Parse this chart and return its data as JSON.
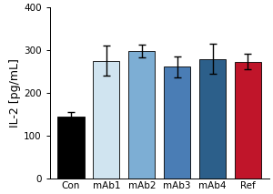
{
  "categories": [
    "Con",
    "mAb1",
    "mAb2",
    "mAb3",
    "mAb4",
    "Ref"
  ],
  "values": [
    145,
    275,
    299,
    261,
    280,
    273
  ],
  "errors": [
    10,
    35,
    15,
    25,
    35,
    18
  ],
  "bar_colors": [
    "#000000",
    "#d0e4f0",
    "#7daed4",
    "#4a7db5",
    "#2c5f8a",
    "#c0152a"
  ],
  "bar_edge_colors": [
    "#000000",
    "#000000",
    "#000000",
    "#000000",
    "#000000",
    "#000000"
  ],
  "ylabel": "IL-2 [pg/mL]",
  "ylim": [
    0,
    400
  ],
  "yticks": [
    0,
    100,
    200,
    300,
    400
  ],
  "bar_width": 0.75,
  "background_color": "#ffffff",
  "capsize": 3,
  "error_color": "black",
  "error_linewidth": 1.0,
  "ylabel_fontsize": 9,
  "tick_fontsize": 7.5,
  "title": ""
}
